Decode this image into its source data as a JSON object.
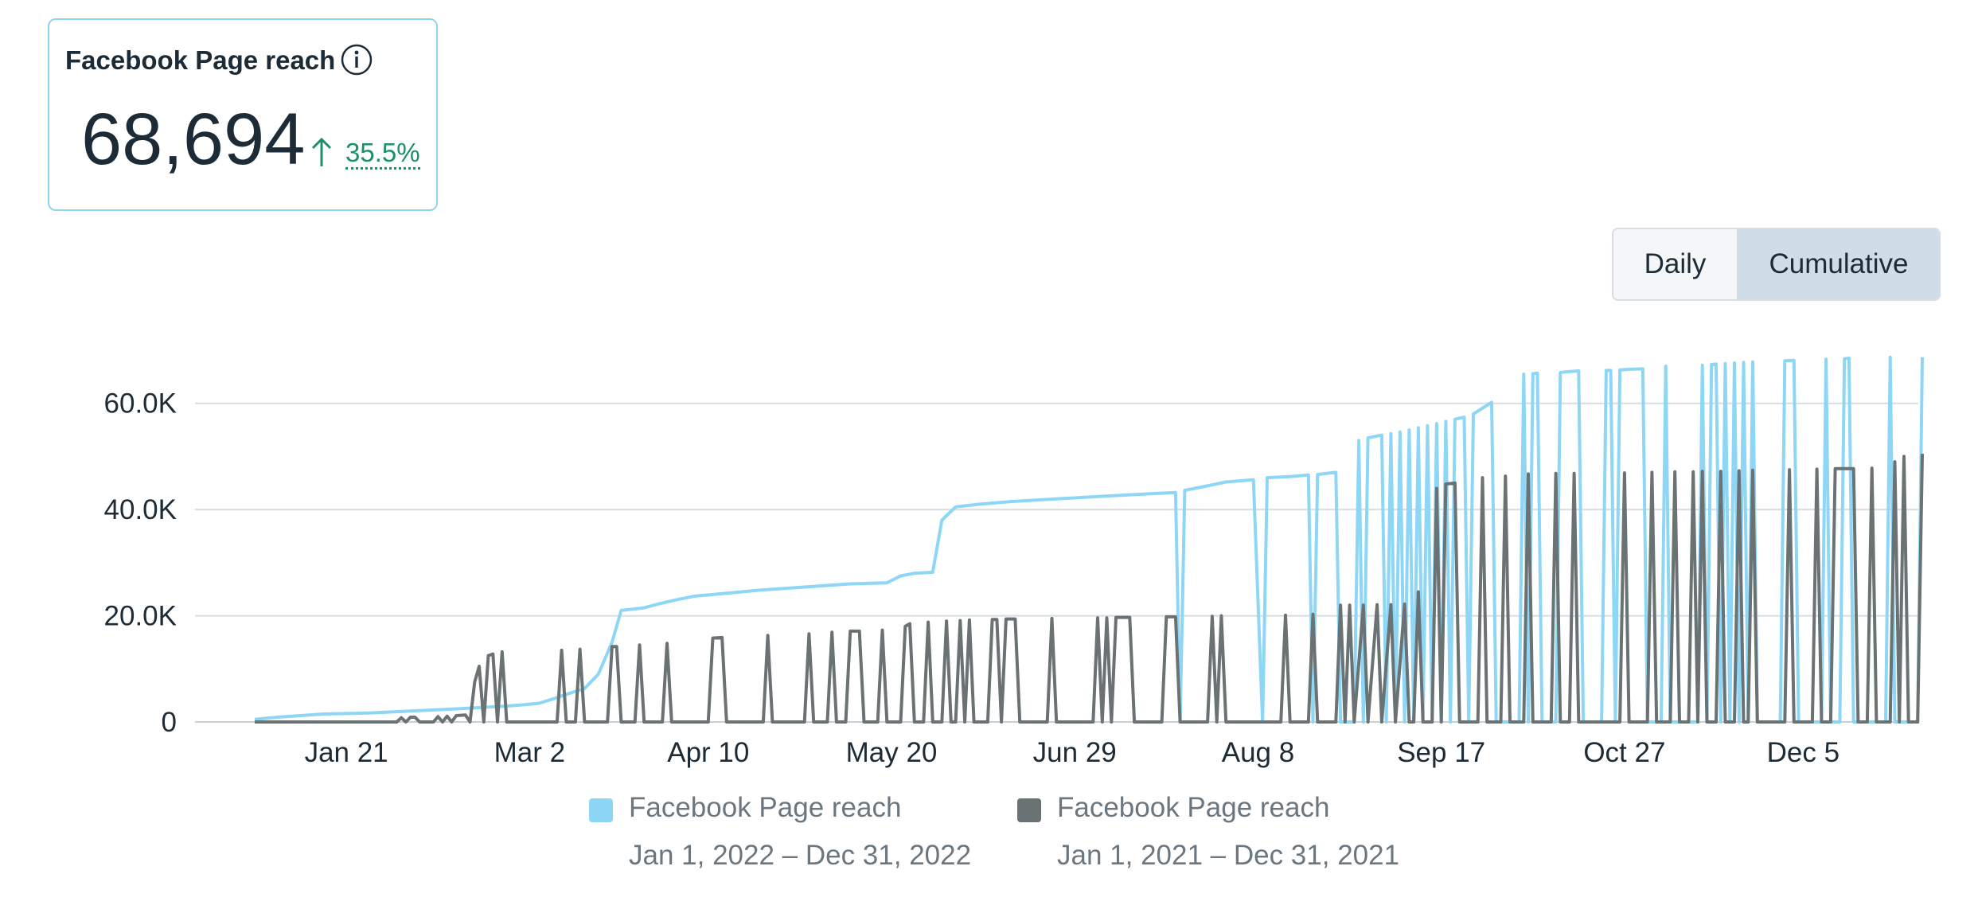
{
  "kpi": {
    "title": "Facebook Page reach",
    "value": "68,694",
    "change": "35.5%",
    "info_icon": "info-icon",
    "trend_icon": "arrow-up-icon",
    "change_color": "#1a8f6a"
  },
  "toggle": {
    "options": [
      "Daily",
      "Cumulative"
    ],
    "selected": "Cumulative"
  },
  "legend": [
    {
      "name": "Facebook Page reach",
      "range": "Jan 1, 2022 – Dec 31, 2022",
      "color": "#8dd6f6"
    },
    {
      "name": "Facebook Page reach",
      "range": "Jan 1, 2021 – Dec 31, 2021",
      "color": "#6a7274"
    }
  ],
  "chart_data": {
    "type": "line",
    "y_ticks": [
      "0",
      "20.0K",
      "40.0K",
      "60.0K"
    ],
    "ylim": [
      0,
      70000
    ],
    "x_tick_labels": [
      "Jan 21",
      "Mar 2",
      "Apr 10",
      "May 20",
      "Jun 29",
      "Aug 8",
      "Sep 17",
      "Oct 27",
      "Dec 5"
    ],
    "x_tick_days": [
      20,
      60,
      99,
      139,
      179,
      219,
      259,
      299,
      338
    ],
    "x_range_days": [
      0,
      364
    ],
    "grid": true,
    "legend_placement": "bottom",
    "series": [
      {
        "name": "Facebook Page reach",
        "period": "Jan 1, 2022 – Dec 31, 2022",
        "color": "#8dd6f6",
        "points": [
          [
            0,
            500
          ],
          [
            5,
            900
          ],
          [
            10,
            1200
          ],
          [
            15,
            1500
          ],
          [
            25,
            1700
          ],
          [
            35,
            2100
          ],
          [
            45,
            2500
          ],
          [
            55,
            3000
          ],
          [
            58,
            3200
          ],
          [
            62,
            3500
          ],
          [
            65,
            4300
          ],
          [
            68,
            5200
          ],
          [
            72,
            6300
          ],
          [
            75,
            9000
          ],
          [
            78,
            15000
          ],
          [
            80,
            21000
          ],
          [
            85,
            21500
          ],
          [
            88,
            22200
          ],
          [
            92,
            23000
          ],
          [
            96,
            23700
          ],
          [
            100,
            24000
          ],
          [
            105,
            24400
          ],
          [
            110,
            24800
          ],
          [
            115,
            25100
          ],
          [
            120,
            25400
          ],
          [
            125,
            25700
          ],
          [
            130,
            26000
          ],
          [
            138,
            26200
          ],
          [
            141,
            27500
          ],
          [
            144,
            28000
          ],
          [
            148,
            28200
          ],
          [
            150,
            38000
          ],
          [
            153,
            40500
          ],
          [
            158,
            41000
          ],
          [
            165,
            41500
          ],
          [
            175,
            42000
          ],
          [
            185,
            42500
          ],
          [
            196,
            43000
          ],
          [
            201,
            43200
          ],
          [
            202,
            0
          ],
          [
            203,
            43600
          ],
          [
            207,
            44300
          ],
          [
            212,
            45200
          ],
          [
            218,
            45600
          ],
          [
            220,
            0
          ],
          [
            221,
            46000
          ],
          [
            226,
            46200
          ],
          [
            230,
            46500
          ],
          [
            231,
            0
          ],
          [
            232,
            46600
          ],
          [
            236,
            47000
          ],
          [
            237,
            0
          ],
          [
            240,
            0
          ],
          [
            241,
            53000
          ],
          [
            242,
            0
          ],
          [
            243,
            53500
          ],
          [
            246,
            54000
          ],
          [
            247,
            0
          ],
          [
            248,
            54300
          ],
          [
            249,
            0
          ],
          [
            250,
            54600
          ],
          [
            251,
            0
          ],
          [
            252,
            55000
          ],
          [
            253,
            0
          ],
          [
            254,
            55400
          ],
          [
            255,
            0
          ],
          [
            256,
            55800
          ],
          [
            257,
            0
          ],
          [
            258,
            56200
          ],
          [
            259,
            0
          ],
          [
            260,
            56600
          ],
          [
            261,
            0
          ],
          [
            262,
            57000
          ],
          [
            264,
            57400
          ],
          [
            265,
            0
          ],
          [
            266,
            58000
          ],
          [
            270,
            60200
          ],
          [
            271,
            0
          ],
          [
            276,
            0
          ],
          [
            277,
            65500
          ],
          [
            278,
            0
          ],
          [
            279,
            65600
          ],
          [
            280,
            65700
          ],
          [
            281,
            0
          ],
          [
            284,
            0
          ],
          [
            285,
            65800
          ],
          [
            287,
            66000
          ],
          [
            289,
            66100
          ],
          [
            290,
            0
          ],
          [
            294,
            0
          ],
          [
            295,
            66200
          ],
          [
            296,
            66200
          ],
          [
            297,
            0
          ],
          [
            298,
            66300
          ],
          [
            300,
            66400
          ],
          [
            303,
            66500
          ],
          [
            304,
            0
          ],
          [
            307,
            0
          ],
          [
            308,
            67000
          ],
          [
            309,
            0
          ],
          [
            315,
            0
          ],
          [
            316,
            67200
          ],
          [
            317,
            0
          ],
          [
            318,
            67300
          ],
          [
            319,
            67400
          ],
          [
            320,
            0
          ],
          [
            321,
            67500
          ],
          [
            322,
            0
          ],
          [
            323,
            67600
          ],
          [
            324,
            0
          ],
          [
            325,
            67700
          ],
          [
            326,
            0
          ],
          [
            327,
            67800
          ],
          [
            328,
            0
          ],
          [
            333,
            0
          ],
          [
            334,
            68000
          ],
          [
            336,
            68100
          ],
          [
            337,
            0
          ],
          [
            342,
            0
          ],
          [
            343,
            68300
          ],
          [
            344,
            0
          ],
          [
            346,
            0
          ],
          [
            347,
            68400
          ],
          [
            348,
            68500
          ],
          [
            349,
            0
          ],
          [
            356,
            0
          ],
          [
            357,
            68694
          ],
          [
            358,
            0
          ],
          [
            363,
            0
          ],
          [
            364,
            68694
          ]
        ]
      },
      {
        "name": "Facebook Page reach",
        "period": "Jan 1, 2021 – Dec 31, 2021",
        "color": "#6a7274",
        "points": [
          [
            0,
            0
          ],
          [
            31,
            0
          ],
          [
            32,
            800
          ],
          [
            33,
            0
          ],
          [
            34,
            900
          ],
          [
            35,
            900
          ],
          [
            36,
            0
          ],
          [
            39,
            0
          ],
          [
            40,
            1000
          ],
          [
            41,
            0
          ],
          [
            42,
            1100
          ],
          [
            43,
            0
          ],
          [
            44,
            1200
          ],
          [
            46,
            1300
          ],
          [
            47,
            0
          ],
          [
            48,
            7500
          ],
          [
            49,
            10500
          ],
          [
            50,
            0
          ],
          [
            51,
            12500
          ],
          [
            52,
            12800
          ],
          [
            53,
            0
          ],
          [
            54,
            13200
          ],
          [
            55,
            0
          ],
          [
            66,
            0
          ],
          [
            67,
            13500
          ],
          [
            68,
            0
          ],
          [
            70,
            0
          ],
          [
            71,
            13700
          ],
          [
            72,
            0
          ],
          [
            77,
            0
          ],
          [
            78,
            14200
          ],
          [
            79,
            14200
          ],
          [
            80,
            0
          ],
          [
            83,
            0
          ],
          [
            84,
            14500
          ],
          [
            85,
            0
          ],
          [
            89,
            0
          ],
          [
            90,
            14800
          ],
          [
            91,
            0
          ],
          [
            99,
            0
          ],
          [
            100,
            15800
          ],
          [
            102,
            15900
          ],
          [
            103,
            0
          ],
          [
            111,
            0
          ],
          [
            112,
            16300
          ],
          [
            113,
            0
          ],
          [
            120,
            0
          ],
          [
            121,
            16600
          ],
          [
            122,
            0
          ],
          [
            125,
            0
          ],
          [
            126,
            16900
          ],
          [
            127,
            0
          ],
          [
            129,
            0
          ],
          [
            130,
            17100
          ],
          [
            132,
            17100
          ],
          [
            133,
            0
          ],
          [
            136,
            0
          ],
          [
            137,
            17300
          ],
          [
            138,
            0
          ],
          [
            141,
            0
          ],
          [
            142,
            18000
          ],
          [
            143,
            18500
          ],
          [
            144,
            0
          ],
          [
            146,
            0
          ],
          [
            147,
            18800
          ],
          [
            148,
            0
          ],
          [
            150,
            0
          ],
          [
            151,
            19000
          ],
          [
            152,
            0
          ],
          [
            153,
            0
          ],
          [
            154,
            19100
          ],
          [
            155,
            0
          ],
          [
            156,
            19200
          ],
          [
            157,
            0
          ],
          [
            160,
            0
          ],
          [
            161,
            19300
          ],
          [
            162,
            19300
          ],
          [
            163,
            0
          ],
          [
            164,
            19400
          ],
          [
            166,
            19400
          ],
          [
            167,
            0
          ],
          [
            173,
            0
          ],
          [
            174,
            19500
          ],
          [
            175,
            0
          ],
          [
            183,
            0
          ],
          [
            184,
            19600
          ],
          [
            185,
            0
          ],
          [
            186,
            19600
          ],
          [
            187,
            0
          ],
          [
            188,
            19700
          ],
          [
            191,
            19700
          ],
          [
            192,
            0
          ],
          [
            198,
            0
          ],
          [
            199,
            19800
          ],
          [
            201,
            19800
          ],
          [
            202,
            0
          ],
          [
            208,
            0
          ],
          [
            209,
            19900
          ],
          [
            210,
            0
          ],
          [
            211,
            20000
          ],
          [
            212,
            0
          ],
          [
            224,
            0
          ],
          [
            225,
            20100
          ],
          [
            226,
            0
          ],
          [
            230,
            0
          ],
          [
            231,
            20300
          ],
          [
            232,
            0
          ],
          [
            236,
            0
          ],
          [
            237,
            22000
          ],
          [
            238,
            0
          ],
          [
            239,
            22000
          ],
          [
            240,
            0
          ],
          [
            242,
            22000
          ],
          [
            243,
            0
          ],
          [
            245,
            22100
          ],
          [
            246,
            0
          ],
          [
            248,
            22100
          ],
          [
            249,
            0
          ],
          [
            251,
            22200
          ],
          [
            252,
            0
          ],
          [
            253,
            0
          ],
          [
            254,
            24500
          ],
          [
            255,
            0
          ],
          [
            257,
            0
          ],
          [
            258,
            44000
          ],
          [
            259,
            0
          ],
          [
            260,
            44800
          ],
          [
            262,
            45000
          ],
          [
            263,
            0
          ],
          [
            267,
            0
          ],
          [
            268,
            46000
          ],
          [
            269,
            0
          ],
          [
            272,
            0
          ],
          [
            273,
            46300
          ],
          [
            274,
            0
          ],
          [
            277,
            0
          ],
          [
            278,
            46700
          ],
          [
            279,
            0
          ],
          [
            283,
            0
          ],
          [
            284,
            46800
          ],
          [
            285,
            0
          ],
          [
            287,
            0
          ],
          [
            288,
            46800
          ],
          [
            289,
            0
          ],
          [
            298,
            0
          ],
          [
            299,
            46900
          ],
          [
            300,
            0
          ],
          [
            304,
            0
          ],
          [
            305,
            47000
          ],
          [
            306,
            0
          ],
          [
            309,
            0
          ],
          [
            310,
            47100
          ],
          [
            311,
            0
          ],
          [
            313,
            0
          ],
          [
            314,
            47100
          ],
          [
            315,
            0
          ],
          [
            316,
            47200
          ],
          [
            317,
            0
          ],
          [
            319,
            0
          ],
          [
            320,
            47200
          ],
          [
            321,
            0
          ],
          [
            323,
            0
          ],
          [
            324,
            47300
          ],
          [
            325,
            0
          ],
          [
            326,
            0
          ],
          [
            327,
            47400
          ],
          [
            328,
            0
          ],
          [
            334,
            0
          ],
          [
            335,
            47500
          ],
          [
            336,
            0
          ],
          [
            340,
            0
          ],
          [
            341,
            47600
          ],
          [
            342,
            0
          ],
          [
            344,
            0
          ],
          [
            345,
            47700
          ],
          [
            349,
            47700
          ],
          [
            350,
            0
          ],
          [
            352,
            0
          ],
          [
            353,
            47800
          ],
          [
            354,
            0
          ],
          [
            357,
            0
          ],
          [
            358,
            49000
          ],
          [
            359,
            0
          ],
          [
            360,
            50000
          ],
          [
            361,
            0
          ],
          [
            363,
            0
          ],
          [
            364,
            50500
          ]
        ]
      }
    ]
  }
}
